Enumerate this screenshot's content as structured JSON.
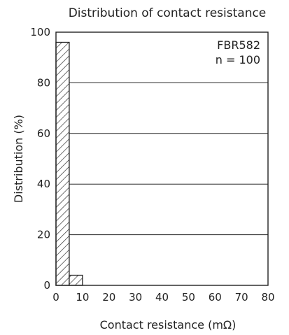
{
  "chart_data": {
    "type": "bar",
    "title": "Distribution of contact resistance",
    "xlabel": "Contact resistance (mΩ)",
    "ylabel": "Distribution (%)",
    "x_range": [
      0,
      80
    ],
    "ylim": [
      0,
      100
    ],
    "x_ticks": [
      0,
      10,
      20,
      30,
      40,
      50,
      60,
      70,
      80
    ],
    "y_ticks": [
      0,
      20,
      40,
      60,
      80,
      100
    ],
    "grid": "horizontal",
    "bars": [
      {
        "x0": 0,
        "x1": 5,
        "value": 96
      },
      {
        "x0": 5,
        "x1": 10,
        "value": 4
      }
    ],
    "annotations": [
      "FBR582",
      "n = 100"
    ],
    "bar_pattern": "diagonal-hatch"
  }
}
